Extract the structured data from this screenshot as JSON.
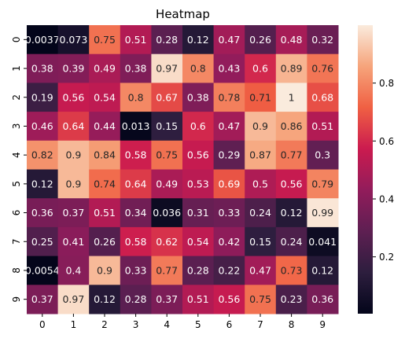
{
  "chart_data": {
    "type": "heatmap",
    "title": "Heatmap",
    "x_ticks": [
      "0",
      "1",
      "2",
      "3",
      "4",
      "5",
      "6",
      "7",
      "8",
      "9"
    ],
    "y_ticks": [
      "0",
      "1",
      "2",
      "3",
      "4",
      "5",
      "6",
      "7",
      "8",
      "9"
    ],
    "values": [
      [
        0.0037,
        0.073,
        0.75,
        0.51,
        0.28,
        0.12,
        0.47,
        0.26,
        0.48,
        0.32
      ],
      [
        0.38,
        0.39,
        0.49,
        0.38,
        0.97,
        0.8,
        0.43,
        0.6,
        0.89,
        0.76
      ],
      [
        0.19,
        0.56,
        0.54,
        0.8,
        0.67,
        0.38,
        0.78,
        0.71,
        1,
        0.68
      ],
      [
        0.46,
        0.64,
        0.44,
        0.013,
        0.15,
        0.6,
        0.47,
        0.9,
        0.86,
        0.51
      ],
      [
        0.82,
        0.9,
        0.84,
        0.58,
        0.75,
        0.56,
        0.29,
        0.87,
        0.77,
        0.3
      ],
      [
        0.12,
        0.9,
        0.74,
        0.64,
        0.49,
        0.53,
        0.69,
        0.5,
        0.56,
        0.79
      ],
      [
        0.36,
        0.37,
        0.51,
        0.34,
        0.036,
        0.31,
        0.33,
        0.24,
        0.12,
        0.99
      ],
      [
        0.25,
        0.41,
        0.26,
        0.58,
        0.62,
        0.54,
        0.42,
        0.15,
        0.24,
        0.041
      ],
      [
        0.0054,
        0.4,
        0.9,
        0.33,
        0.77,
        0.28,
        0.22,
        0.47,
        0.73,
        0.12
      ],
      [
        0.37,
        0.97,
        0.12,
        0.28,
        0.37,
        0.51,
        0.56,
        0.75,
        0.23,
        0.36
      ]
    ],
    "colorbar": {
      "ticks": [
        "0.2",
        "0.4",
        "0.6",
        "0.8"
      ],
      "tick_values": [
        0.2,
        0.4,
        0.6,
        0.8
      ],
      "range": [
        0.0037,
        1.0
      ]
    },
    "colormap": "rocket",
    "colormap_stops": [
      "#03051a",
      "#2d1e3e",
      "#5e1f52",
      "#921c5b",
      "#cb1b4f",
      "#f06043",
      "#f6a47b",
      "#faebdd"
    ]
  }
}
